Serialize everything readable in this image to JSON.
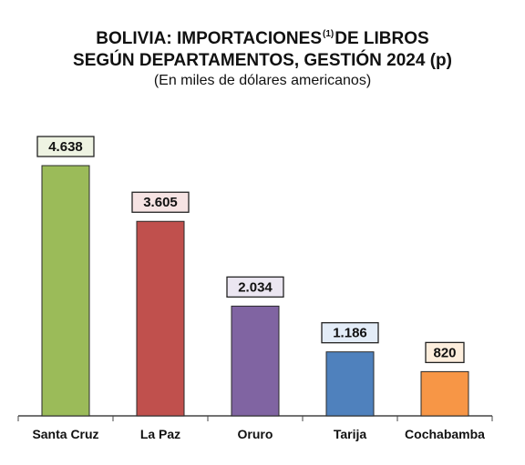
{
  "title": {
    "line1_pre": "BOLIVIA: IMPORTACIONES",
    "line1_sup": "(1)",
    "line1_post": "DE LIBROS",
    "line2": "SEGÚN DEPARTAMENTOS, GESTIÓN 2024 (p)",
    "subtitle": "(En miles de dólares americanos)"
  },
  "chart_data": {
    "type": "bar",
    "title": "BOLIVIA: IMPORTACIONES (1) DE LIBROS SEGÚN DEPARTAMENTOS, GESTIÓN 2024 (p)",
    "subtitle": "(En miles de dólares americanos)",
    "categories": [
      "Santa Cruz",
      "La Paz",
      "Oruro",
      "Tarija",
      "Cochabamba"
    ],
    "values": [
      4638,
      3605,
      2034,
      1186,
      820
    ],
    "value_labels": [
      "4.638",
      "3.605",
      "2.034",
      "1.186",
      "820"
    ],
    "bar_colors": [
      "#9bbb59",
      "#c0504d",
      "#8064a2",
      "#4f81bd",
      "#f79646"
    ],
    "label_box_colors": [
      "#eef3e2",
      "#f6e3e3",
      "#ebe6f1",
      "#e3ecf7",
      "#fdeedd"
    ],
    "ylim": [
      0,
      5000
    ],
    "grid": false,
    "legend": "none"
  }
}
